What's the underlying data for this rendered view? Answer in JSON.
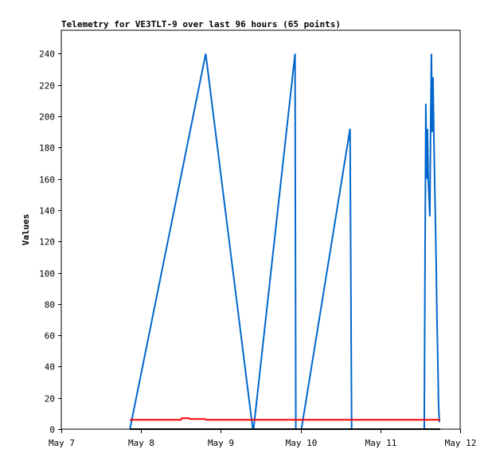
{
  "chart_data": {
    "type": "line",
    "title": "Telemetry for VE3TLT-9 over last 96 hours (65 points)",
    "xlabel": "",
    "ylabel": "Values",
    "x_tick_labels": [
      "May 7",
      "May 8",
      "May 9",
      "May 10",
      "May 11",
      "May 12"
    ],
    "xlim": [
      0,
      5
    ],
    "ylim": [
      0,
      255
    ],
    "y_ticks": [
      0,
      20,
      40,
      60,
      80,
      100,
      120,
      140,
      160,
      180,
      200,
      220,
      240
    ],
    "grid": false,
    "legend": "none",
    "series": [
      {
        "color": "#0066cc",
        "x": [
          0.86,
          1.81,
          2.4,
          2.41,
          2.93,
          2.94,
          3.01,
          3.62,
          3.63,
          3.64,
          4.55,
          4.56,
          4.57,
          4.58,
          4.59,
          4.6,
          4.62,
          4.63,
          4.64,
          4.65,
          4.66,
          4.67,
          4.68,
          4.69,
          4.7,
          4.71,
          4.72,
          4.73,
          4.74,
          4.75
        ],
        "y": [
          0,
          240,
          0,
          0,
          240,
          0,
          0,
          192,
          96,
          0,
          0,
          110,
          208,
          160,
          192,
          160,
          136,
          192,
          240,
          190,
          225,
          190,
          160,
          135,
          105,
          70,
          45,
          15,
          5,
          5
        ]
      },
      {
        "color": "#ff0000",
        "x": [
          0.86,
          1.5,
          1.51,
          1.6,
          1.61,
          1.8,
          1.81,
          4.75
        ],
        "y": [
          6,
          6,
          7,
          7,
          6.5,
          6.5,
          6,
          6
        ]
      },
      {
        "color": "#000000",
        "x": [
          0.86,
          4.75
        ],
        "y": [
          0,
          0
        ]
      }
    ]
  }
}
